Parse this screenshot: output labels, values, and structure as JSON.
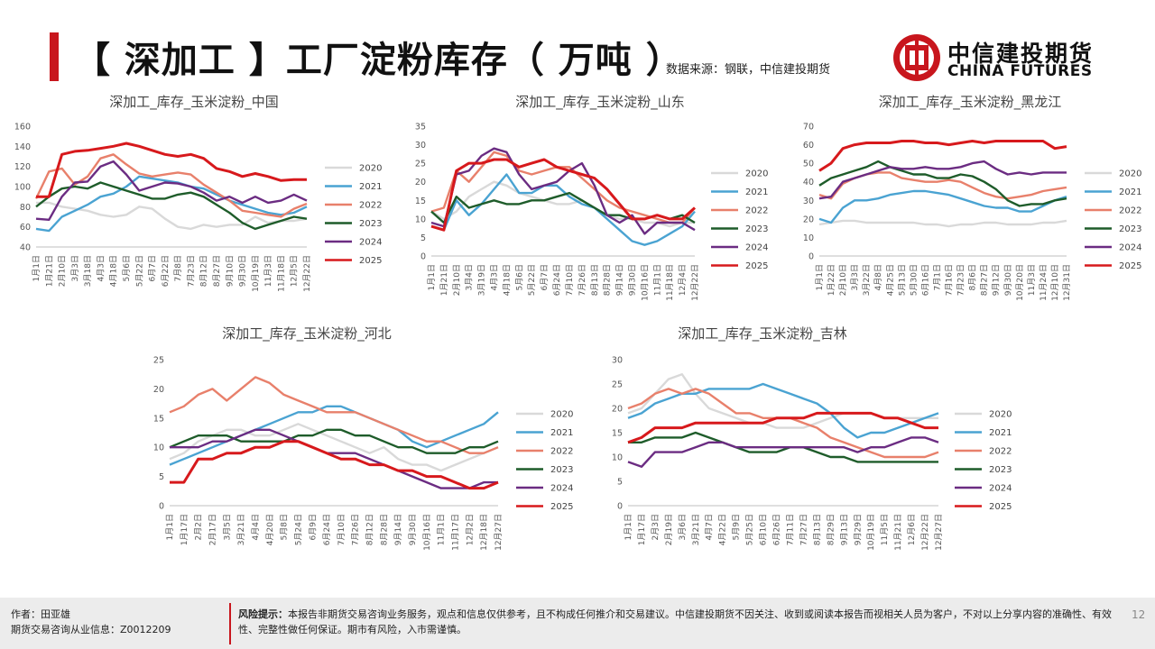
{
  "header": {
    "title": "【 深加工 】工厂淀粉库存（ 万吨 ）",
    "source": "数据来源：钢联，中信建投期货",
    "logo_cn": "中信建投期货",
    "logo_en": "CHINA FUTURES"
  },
  "footer": {
    "author": "作者：田亚雄",
    "license": "期货交易咨询从业信息：Z0012209",
    "risk_label": "风险提示：",
    "risk_text": "本报告非期货交易咨询业务服务，观点和信息仅供参考，且不构成任何推介和交易建议。中信建投期货不因关注、收到或阅读本报告而视相关人员为客户，不对以上分享内容的准确性、有效性、完整性做任何保证。期市有风险，入市需谨慎。",
    "page": "12"
  },
  "colors": {
    "2020": "#d9d9d9",
    "2021": "#4aa3d2",
    "2022": "#e8806b",
    "2023": "#1e5c2a",
    "2024": "#6b2c82",
    "2025": "#d7191c",
    "brand": "#c8161d"
  },
  "chart_data": [
    {
      "type": "line",
      "title": "深加工_库存_玉米淀粉_中国",
      "yticks": [
        "40",
        "60",
        "80",
        "100",
        "120",
        "140",
        "160"
      ],
      "ylim": [
        40,
        160
      ],
      "xticks": [
        "1月1日",
        "1月21日",
        "2月10日",
        "3月3日",
        "3月18日",
        "4月3日",
        "4月18日",
        "5月6日",
        "5月22日",
        "6月7日",
        "6月22日",
        "7月8日",
        "7月23日",
        "8月12日",
        "8月27日",
        "9月10日",
        "9月30日",
        "10月19日",
        "11月3日",
        "11月18日",
        "12月5日",
        "12月22日"
      ],
      "series": [
        {
          "name": "2020",
          "values": [
            84,
            84,
            80,
            78,
            76,
            72,
            70,
            72,
            80,
            78,
            68,
            60,
            58,
            62,
            60,
            62,
            62,
            70,
            64,
            66,
            66,
            68
          ]
        },
        {
          "name": "2021",
          "values": [
            58,
            56,
            70,
            76,
            82,
            90,
            93,
            100,
            110,
            108,
            106,
            104,
            100,
            98,
            92,
            86,
            82,
            78,
            74,
            72,
            74,
            80
          ]
        },
        {
          "name": "2022",
          "values": [
            88,
            115,
            118,
            102,
            110,
            128,
            132,
            122,
            113,
            110,
            112,
            114,
            112,
            102,
            94,
            86,
            76,
            74,
            72,
            70,
            78,
            83
          ]
        },
        {
          "name": "2023",
          "values": [
            80,
            90,
            98,
            100,
            98,
            104,
            100,
            96,
            92,
            88,
            88,
            92,
            94,
            90,
            82,
            74,
            64,
            58,
            62,
            66,
            70,
            68
          ]
        },
        {
          "name": "2024",
          "values": [
            68,
            67,
            90,
            104,
            105,
            120,
            125,
            112,
            96,
            100,
            104,
            103,
            100,
            94,
            86,
            90,
            84,
            90,
            84,
            86,
            92,
            86
          ]
        },
        {
          "name": "2025",
          "values": [
            90,
            90,
            132,
            135,
            136,
            138,
            140,
            143,
            140,
            136,
            132,
            130,
            132,
            128,
            118,
            115,
            110,
            113,
            110,
            106,
            107,
            107
          ]
        }
      ]
    },
    {
      "type": "line",
      "title": "深加工_库存_玉米淀粉_山东",
      "yticks": [
        "0",
        "5",
        "10",
        "15",
        "20",
        "25",
        "30",
        "35"
      ],
      "ylim": [
        0,
        35
      ],
      "xticks": [
        "1月1日",
        "1月21日",
        "2月10日",
        "3月4日",
        "3月19日",
        "4月3日",
        "4月18日",
        "5月6日",
        "5月22日",
        "6月7日",
        "6月24日",
        "7月10日",
        "7月26日",
        "8月13日",
        "8月28日",
        "9月14日",
        "9月30日",
        "10月16日",
        "11月1日",
        "11月18日",
        "12月4日",
        "12月22日"
      ],
      "series": [
        {
          "name": "2020",
          "values": [
            12,
            10,
            12,
            16,
            18,
            20,
            19,
            17,
            16,
            15,
            14,
            14,
            15,
            13,
            11,
            10,
            10,
            9,
            9,
            8,
            9,
            9
          ]
        },
        {
          "name": "2021",
          "values": [
            8,
            7,
            15,
            11,
            14,
            18,
            22,
            17,
            17,
            19,
            19,
            16,
            14,
            13,
            10,
            7,
            4,
            3,
            4,
            6,
            8,
            12
          ]
        },
        {
          "name": "2022",
          "values": [
            12,
            13,
            23,
            20,
            24,
            28,
            27,
            23,
            22,
            23,
            24,
            24,
            21,
            18,
            15,
            13,
            12,
            11,
            10,
            9,
            9,
            13
          ]
        },
        {
          "name": "2023",
          "values": [
            12,
            9,
            16,
            13,
            14,
            15,
            14,
            14,
            15,
            15,
            16,
            17,
            15,
            13,
            11,
            11,
            10,
            10,
            11,
            10,
            11,
            9
          ]
        },
        {
          "name": "2024",
          "values": [
            9,
            8,
            22,
            23,
            27,
            29,
            28,
            22,
            18,
            19,
            20,
            23,
            25,
            19,
            11,
            9,
            11,
            6,
            9,
            9,
            9,
            7
          ]
        },
        {
          "name": "2025",
          "values": [
            8,
            7,
            23,
            25,
            25,
            26,
            26,
            24,
            25,
            26,
            24,
            23,
            22,
            21,
            18,
            14,
            10,
            10,
            11,
            10,
            10,
            13
          ]
        }
      ]
    },
    {
      "type": "line",
      "title": "深加工_库存_玉米淀粉_黑龙江",
      "yticks": [
        "0",
        "10",
        "20",
        "30",
        "40",
        "50",
        "60",
        "70"
      ],
      "ylim": [
        0,
        70
      ],
      "xticks": [
        "1月1日",
        "1月22日",
        "2月10日",
        "3月3日",
        "3月22日",
        "4月8日",
        "4月25日",
        "5月13日",
        "5月30日",
        "6月16日",
        "7月1日",
        "7月16日",
        "7月23日",
        "8月6日",
        "8月27日",
        "9月12日",
        "9月30日",
        "10月20日",
        "11月3日",
        "11月24日",
        "12月10日",
        "12月31日"
      ],
      "series": [
        {
          "name": "2020",
          "values": [
            17,
            18,
            19,
            19,
            18,
            18,
            18,
            18,
            18,
            17,
            17,
            16,
            17,
            17,
            18,
            18,
            17,
            17,
            17,
            18,
            18,
            19
          ]
        },
        {
          "name": "2021",
          "values": [
            20,
            18,
            26,
            30,
            30,
            31,
            33,
            34,
            35,
            35,
            34,
            33,
            31,
            29,
            27,
            26,
            26,
            24,
            24,
            27,
            30,
            32
          ]
        },
        {
          "name": "2022",
          "values": [
            33,
            31,
            39,
            42,
            44,
            45,
            45,
            42,
            41,
            40,
            40,
            41,
            40,
            37,
            34,
            32,
            31,
            32,
            33,
            35,
            36,
            37
          ]
        },
        {
          "name": "2023",
          "values": [
            38,
            42,
            44,
            46,
            48,
            51,
            48,
            46,
            44,
            44,
            42,
            42,
            44,
            43,
            40,
            36,
            30,
            27,
            28,
            28,
            30,
            31
          ]
        },
        {
          "name": "2024",
          "values": [
            31,
            32,
            40,
            42,
            44,
            46,
            48,
            47,
            47,
            48,
            47,
            47,
            48,
            50,
            51,
            47,
            44,
            45,
            44,
            45,
            45,
            45
          ]
        },
        {
          "name": "2025",
          "values": [
            46,
            50,
            58,
            60,
            61,
            61,
            61,
            62,
            62,
            61,
            61,
            60,
            61,
            62,
            61,
            62,
            62,
            62,
            62,
            62,
            58,
            59
          ]
        }
      ]
    },
    {
      "type": "line",
      "title": "深加工_库存_玉米淀粉_河北",
      "yticks": [
        "0",
        "5",
        "10",
        "15",
        "20",
        "25"
      ],
      "ylim": [
        0,
        25
      ],
      "xticks": [
        "1月1日",
        "1月17日",
        "2月2日",
        "2月17日",
        "3月5日",
        "3月21日",
        "4月4日",
        "4月20日",
        "5月8日",
        "5月24日",
        "6月9日",
        "6月24日",
        "7月10日",
        "7月26日",
        "8月12日",
        "8月28日",
        "9月14日",
        "9月30日",
        "10月16日",
        "11月1日",
        "11月17日",
        "12月2日",
        "12月18日",
        "12月27日"
      ],
      "series": [
        {
          "name": "2020",
          "values": [
            8,
            9,
            11,
            12,
            13,
            13,
            12,
            12,
            13,
            14,
            13,
            12,
            11,
            10,
            9,
            10,
            8,
            7,
            7,
            6,
            7,
            8,
            9,
            10
          ]
        },
        {
          "name": "2021",
          "values": [
            7,
            8,
            9,
            10,
            11,
            12,
            13,
            14,
            15,
            16,
            16,
            17,
            17,
            16,
            15,
            14,
            13,
            11,
            10,
            11,
            12,
            13,
            14,
            16
          ]
        },
        {
          "name": "2022",
          "values": [
            16,
            17,
            19,
            20,
            18,
            20,
            22,
            21,
            19,
            18,
            17,
            16,
            16,
            16,
            15,
            14,
            13,
            12,
            11,
            11,
            10,
            9,
            9,
            10
          ]
        },
        {
          "name": "2023",
          "values": [
            10,
            11,
            12,
            12,
            12,
            11,
            11,
            11,
            11,
            12,
            12,
            13,
            13,
            12,
            12,
            11,
            10,
            10,
            9,
            9,
            9,
            10,
            10,
            11
          ]
        },
        {
          "name": "2024",
          "values": [
            10,
            10,
            10,
            11,
            11,
            12,
            13,
            13,
            12,
            11,
            10,
            9,
            9,
            9,
            8,
            7,
            6,
            5,
            4,
            3,
            3,
            3,
            4,
            4
          ]
        },
        {
          "name": "2025",
          "values": [
            4,
            4,
            8,
            8,
            9,
            9,
            10,
            10,
            11,
            11,
            10,
            9,
            8,
            8,
            7,
            7,
            6,
            6,
            5,
            5,
            4,
            3,
            3,
            4
          ]
        }
      ]
    },
    {
      "type": "line",
      "title": "深加工_库存_玉米淀粉_吉林",
      "yticks": [
        "0",
        "5",
        "10",
        "15",
        "20",
        "25",
        "30"
      ],
      "ylim": [
        0,
        30
      ],
      "xticks": [
        "1月1日",
        "1月17日",
        "2月3日",
        "2月19日",
        "3月6日",
        "3月21日",
        "4月7日",
        "4月22日",
        "5月9日",
        "5月25日",
        "6月10日",
        "6月26日",
        "7月11日",
        "7月27日",
        "8月13日",
        "8月29日",
        "9月13日",
        "9月29日",
        "10月19日",
        "11月5日",
        "11月21日",
        "12月6日",
        "12月22日",
        "12月27日"
      ],
      "series": [
        {
          "name": "2020",
          "values": [
            19,
            20,
            23,
            26,
            27,
            23,
            20,
            19,
            18,
            17,
            17,
            16,
            16,
            16,
            17,
            18,
            19,
            19,
            19,
            18,
            18,
            18,
            18,
            18
          ]
        },
        {
          "name": "2021",
          "values": [
            18,
            19,
            21,
            22,
            23,
            23,
            24,
            24,
            24,
            24,
            25,
            24,
            23,
            22,
            21,
            19,
            16,
            14,
            15,
            15,
            16,
            17,
            18,
            19
          ]
        },
        {
          "name": "2022",
          "values": [
            20,
            21,
            23,
            24,
            23,
            24,
            23,
            21,
            19,
            19,
            18,
            18,
            18,
            17,
            16,
            14,
            13,
            12,
            11,
            10,
            10,
            10,
            10,
            11
          ]
        },
        {
          "name": "2023",
          "values": [
            13,
            13,
            14,
            14,
            14,
            15,
            14,
            13,
            12,
            11,
            11,
            11,
            12,
            12,
            11,
            10,
            10,
            9,
            9,
            9,
            9,
            9,
            9,
            9
          ]
        },
        {
          "name": "2024",
          "values": [
            9,
            8,
            11,
            11,
            11,
            12,
            13,
            13,
            12,
            12,
            12,
            12,
            12,
            12,
            12,
            12,
            12,
            11,
            12,
            12,
            13,
            14,
            14,
            13
          ]
        },
        {
          "name": "2025",
          "values": [
            13,
            14,
            16,
            16,
            16,
            17,
            17,
            17,
            17,
            17,
            17,
            18,
            18,
            18,
            19,
            19,
            19,
            19,
            19,
            18,
            18,
            17,
            16,
            16
          ]
        }
      ]
    }
  ]
}
